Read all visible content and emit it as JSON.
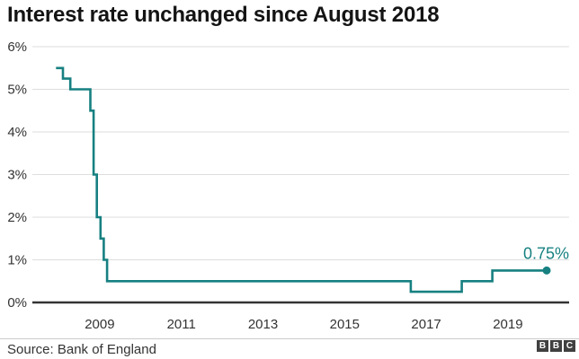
{
  "header": {
    "title": "Interest rate unchanged since August 2018"
  },
  "footer": {
    "source": "Source: Bank of England",
    "logo_letters": [
      "B",
      "B",
      "C"
    ]
  },
  "chart_data": {
    "type": "line",
    "title": "Interest rate unchanged since August 2018",
    "xlabel": "",
    "ylabel": "",
    "grid": true,
    "legend_position": "none",
    "y_ticks": [
      0,
      1,
      2,
      3,
      4,
      5,
      6
    ],
    "y_tick_suffix": "%",
    "x_ticks": [
      2009,
      2011,
      2013,
      2015,
      2017,
      2019
    ],
    "xlim": [
      2007.35,
      2020.5
    ],
    "ylim": [
      0,
      6
    ],
    "series": [
      {
        "name": "Bank of England interest rate (%)",
        "step": "after",
        "points": [
          [
            2007.93,
            5.5
          ],
          [
            2008.1,
            5.25
          ],
          [
            2008.28,
            5.0
          ],
          [
            2008.77,
            4.5
          ],
          [
            2008.85,
            3.0
          ],
          [
            2008.93,
            2.0
          ],
          [
            2009.02,
            1.5
          ],
          [
            2009.1,
            1.0
          ],
          [
            2009.18,
            0.5
          ],
          [
            2016.62,
            0.25
          ],
          [
            2017.87,
            0.5
          ],
          [
            2018.62,
            0.75
          ]
        ]
      }
    ],
    "end_year": 2019.95,
    "end_value": 0.75,
    "end_label": "0.75%",
    "colors": {
      "line": "#178081",
      "grid": "#dddddd",
      "baseline": "#333333",
      "tick": "#333333"
    }
  }
}
